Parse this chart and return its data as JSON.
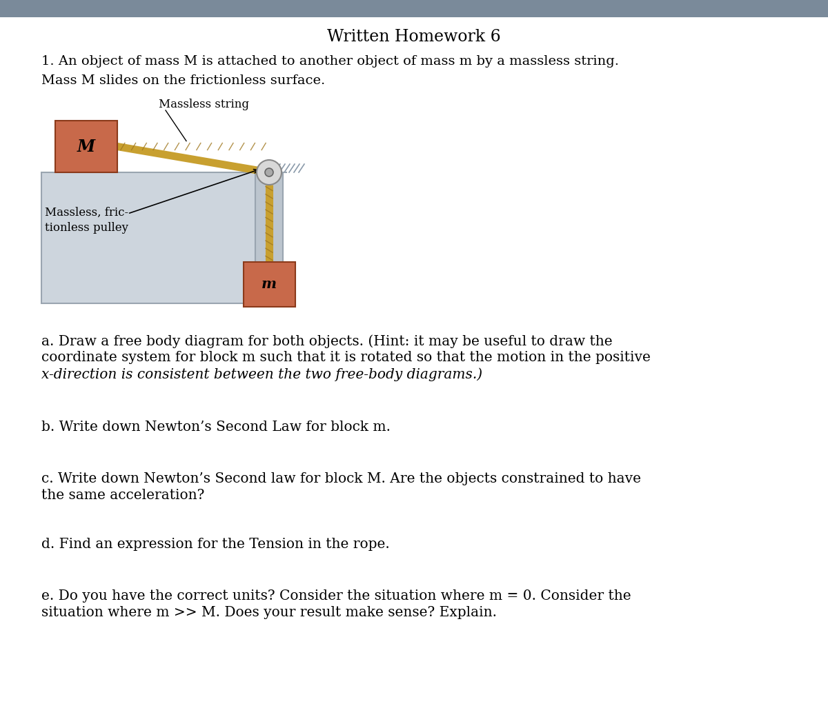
{
  "title": "Written Homework 6",
  "background_color": "#ffffff",
  "header_bar_color": "#7a8a9a",
  "problem_text_1": "1. An object of mass M is attached to another object of mass m by a massless string.",
  "problem_text_2": "Mass M slides on the frictionless surface.",
  "block_M_color": "#c8694a",
  "block_m_color": "#c8694a",
  "block_edge_color": "#8b3a1a",
  "table_color": "#cdd5dd",
  "table_edge_color": "#9aa5b0",
  "rope_color": "#c8a030",
  "rope_dark_color": "#a07820",
  "pulley_outer_color": "#d8d8d8",
  "pulley_inner_color": "#aaaaaa",
  "wall_color": "#bcc5ce",
  "hatch_color": "#8a9aaa",
  "label_massless_string": "Massless string",
  "label_massless_pulley_1": "Massless, fric-",
  "label_massless_pulley_2": "tionless pulley",
  "label_M": "M",
  "label_m": "m",
  "question_a": "a. Draw a free body diagram for both objects. (Hint: it may be useful to draw the coordinate system for block m such that it is rotated so that the motion in the positive x-direction is consistent between the two free-body diagrams.)",
  "question_b": "b. Write down Newton’s Second Law for block m.",
  "question_c": "c. Write down Newton’s Second law for block M. Are the objects constrained to have the same acceleration?",
  "question_d": "d. Find an expression for the Tension in the rope.",
  "question_e": "e. Do you have the correct units? Consider the situation where m = 0. Consider the situation where m >> M. Does your result make sense? Explain."
}
